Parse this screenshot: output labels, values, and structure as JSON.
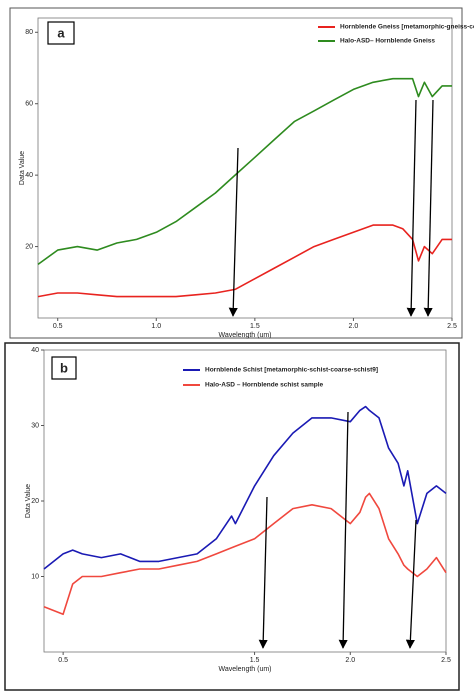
{
  "chart_data": [
    {
      "type": "line",
      "label": "a",
      "xlabel": "Wavelength (um)",
      "ylabel": "Data Value",
      "xlim": [
        0.4,
        2.5
      ],
      "ylim": [
        0,
        84
      ],
      "xticks": [
        0.5,
        {
          "value": 1,
          "label": "1.0"
        },
        1.5,
        {
          "value": 2,
          "label": "2.0"
        },
        2.5
      ],
      "yticks": [
        20,
        40,
        60,
        80
      ],
      "x": [
        0.4,
        0.5,
        0.6,
        0.7,
        0.8,
        0.9,
        1.0,
        1.1,
        1.2,
        1.3,
        1.4,
        1.5,
        1.6,
        1.7,
        1.8,
        1.9,
        2.0,
        2.1,
        2.2,
        2.25,
        2.3,
        2.33,
        2.36,
        2.4,
        2.45,
        2.5
      ],
      "series": [
        {
          "name": "Hornblende Gneiss [metamorphic-gneiss-co",
          "color": "#e8231f",
          "values": [
            6,
            7,
            7,
            6.5,
            6,
            6,
            6,
            6,
            6.5,
            7,
            8,
            11,
            14,
            17,
            20,
            22,
            24,
            26,
            26,
            25,
            22,
            16,
            20,
            18,
            22,
            22
          ]
        },
        {
          "name": "Halo-ASD– Hornblende Gneiss",
          "color": "#2e8b1f",
          "values": [
            15,
            19,
            20,
            19,
            21,
            22,
            24,
            27,
            31,
            35,
            40,
            45,
            50,
            55,
            58,
            61,
            64,
            66,
            67,
            67,
            67,
            62,
            66,
            62,
            65,
            65
          ]
        }
      ]
    },
    {
      "type": "line",
      "label": "b",
      "xlabel": "Wavelength (um)",
      "ylabel": "Data Value",
      "xlim": [
        0.4,
        2.5
      ],
      "ylim": [
        0,
        40
      ],
      "xticks": [
        0.5,
        1.5,
        {
          "value": 2,
          "label": "2.0"
        },
        2.5
      ],
      "yticks": [
        10,
        20,
        30,
        40
      ],
      "x": [
        0.4,
        0.5,
        0.55,
        0.6,
        0.7,
        0.8,
        0.9,
        1.0,
        1.1,
        1.2,
        1.3,
        1.38,
        1.4,
        1.5,
        1.6,
        1.7,
        1.8,
        1.9,
        2.0,
        2.05,
        2.08,
        2.1,
        2.15,
        2.2,
        2.25,
        2.28,
        2.3,
        2.35,
        2.4,
        2.45,
        2.5
      ],
      "series": [
        {
          "name": "Hornblende Schist [metamorphic-schist-coarse-schist9]",
          "color": "#1a1ab4",
          "values": [
            11,
            13,
            13.5,
            13,
            12.5,
            13,
            12,
            12,
            12.5,
            13,
            15,
            18,
            17,
            22,
            26,
            29,
            31,
            31,
            30.5,
            32,
            32.5,
            32,
            31,
            27,
            25,
            22,
            24,
            17,
            21,
            22,
            21
          ]
        },
        {
          "name": "Halo-ASD – Hornblende schist sample",
          "color": "#f0483e",
          "values": [
            6,
            5,
            9,
            10,
            10,
            10.5,
            11,
            11,
            11.5,
            12,
            13,
            13.8,
            14,
            15,
            17,
            19,
            19.5,
            19,
            17,
            18.5,
            20.5,
            21,
            19,
            15,
            13,
            11.5,
            11,
            10,
            11,
            12.5,
            10.5
          ]
        }
      ]
    }
  ]
}
